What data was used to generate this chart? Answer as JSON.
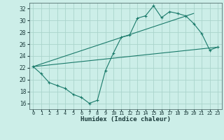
{
  "xlabel": "Humidex (Indice chaleur)",
  "bg_color": "#cceee8",
  "grid_color": "#aad4cc",
  "line_color": "#1a7a6a",
  "xlim": [
    -0.5,
    23.5
  ],
  "ylim": [
    15,
    33
  ],
  "yticks": [
    16,
    18,
    20,
    22,
    24,
    26,
    28,
    30,
    32
  ],
  "xticks": [
    0,
    1,
    2,
    3,
    4,
    5,
    6,
    7,
    8,
    9,
    10,
    11,
    12,
    13,
    14,
    15,
    16,
    17,
    18,
    19,
    20,
    21,
    22,
    23
  ],
  "series1_x": [
    0,
    1,
    2,
    3,
    4,
    5,
    6,
    7,
    8,
    9,
    10,
    11,
    12,
    13,
    14,
    15,
    16,
    17,
    18,
    19,
    20,
    21,
    22,
    23
  ],
  "series1_y": [
    22.2,
    21.0,
    19.5,
    19.0,
    18.5,
    17.5,
    17.0,
    16.0,
    16.5,
    21.5,
    24.5,
    27.2,
    27.5,
    30.4,
    30.8,
    32.5,
    30.5,
    31.5,
    31.2,
    30.8,
    29.5,
    27.8,
    25.0,
    25.5
  ],
  "series2_x": [
    0,
    23
  ],
  "series2_y": [
    22.2,
    25.5
  ],
  "series3_x": [
    0,
    20
  ],
  "series3_y": [
    22.2,
    31.2
  ]
}
